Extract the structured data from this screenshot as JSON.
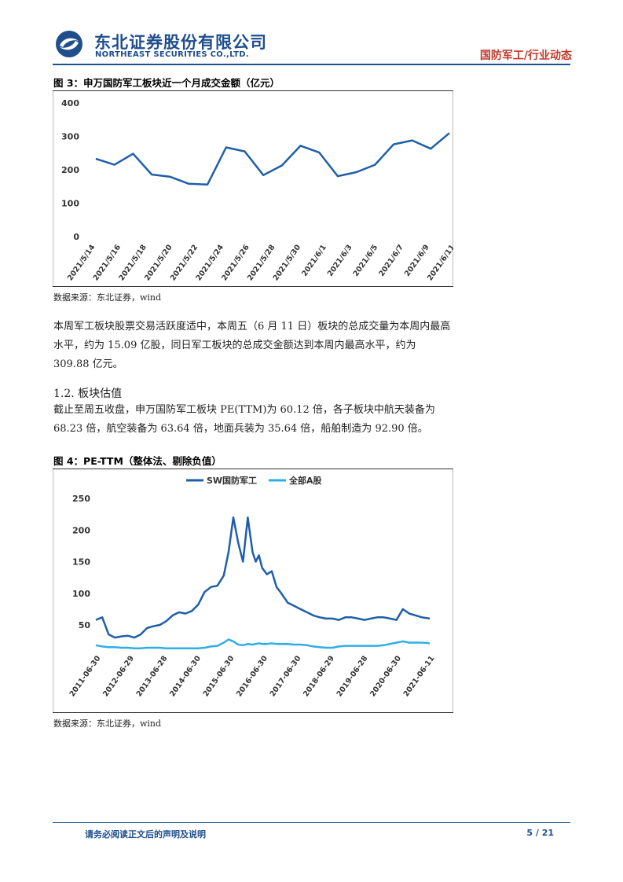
{
  "header": {
    "company_cn": "东北证券股份有限公司",
    "company_en": "NORTHEAST SECURITIES CO.,LTD.",
    "section": "国防军工/行业动态"
  },
  "figure3": {
    "title": "图 3：申万国防军工板块近一个月成交金额（亿元）",
    "source": "数据来源：东北证券，wind",
    "chart_data": {
      "type": "line",
      "title": "",
      "x_tick_labels": [
        "2021/5/14",
        "2021/5/16",
        "2021/5/18",
        "2021/5/20",
        "2021/5/22",
        "2021/5/24",
        "2021/5/26",
        "2021/5/28",
        "2021/5/30",
        "2021/6/1",
        "2021/6/3",
        "2021/6/5",
        "2021/6/7",
        "2021/6/9",
        "2021/6/11"
      ],
      "x": [
        "2021/5/14",
        "2021/5/17",
        "2021/5/18",
        "2021/5/19",
        "2021/5/20",
        "2021/5/21",
        "2021/5/24",
        "2021/5/25",
        "2021/5/26",
        "2021/5/27",
        "2021/5/28",
        "2021/5/31",
        "2021/6/1",
        "2021/6/2",
        "2021/6/3",
        "2021/6/4",
        "2021/6/7",
        "2021/6/8",
        "2021/6/9",
        "2021/6/10",
        "2021/6/11"
      ],
      "series": [
        {
          "name": "",
          "color": "#1f5fa8",
          "values": [
            233,
            215,
            248,
            186,
            179,
            158,
            156,
            267,
            255,
            184,
            213,
            272,
            252,
            181,
            193,
            215,
            276,
            288,
            263,
            310,
            null
          ]
        }
      ],
      "y_ticks": [
        0,
        100,
        200,
        300,
        400
      ],
      "ylim": [
        0,
        400
      ],
      "xlabel": "",
      "ylabel": "",
      "grid": false
    }
  },
  "paragraph1": "本周军工板块股票交易活跃度适中，本周五（6 月 11 日）板块的总成交量为本周内最高水平，约为 15.09 亿股，同日军工板块的总成交金额达到本周内最高水平，约为 309.88 亿元。",
  "section_heading": "1.2.  板块估值",
  "paragraph2": "截止至周五收盘，申万国防军工板块 PE(TTM)为 60.12 倍，各子板块中航天装备为 68.23 倍，航空装备为 63.64 倍，地面兵装为 35.64 倍，船舶制造为 92.90 倍。",
  "figure4": {
    "title": "图 4：PE-TTM（整体法、剔除负值）",
    "source": "数据来源：东北证券，wind",
    "chart_data": {
      "type": "line",
      "title": "",
      "x_tick_labels": [
        "2011-06-30",
        "2012-06-29",
        "2013-06-28",
        "2014-06-30",
        "2015-06-30",
        "2016-06-30",
        "2017-06-30",
        "2018-06-29",
        "2019-06-28",
        "2020-06-30",
        "2021-06-11"
      ],
      "x": [
        2011.0,
        2011.2,
        2011.4,
        2011.6,
        2011.8,
        2012.0,
        2012.2,
        2012.4,
        2012.6,
        2012.8,
        2013.0,
        2013.2,
        2013.4,
        2013.6,
        2013.8,
        2014.0,
        2014.2,
        2014.4,
        2014.6,
        2014.8,
        2015.0,
        2015.15,
        2015.3,
        2015.45,
        2015.6,
        2015.75,
        2015.9,
        2016.0,
        2016.1,
        2016.2,
        2016.35,
        2016.5,
        2016.65,
        2016.8,
        2017.0,
        2017.2,
        2017.4,
        2017.6,
        2017.8,
        2018.0,
        2018.2,
        2018.4,
        2018.6,
        2018.8,
        2019.0,
        2019.2,
        2019.4,
        2019.6,
        2019.8,
        2020.0,
        2020.2,
        2020.4,
        2020.6,
        2020.8,
        2021.0,
        2021.2,
        2021.44
      ],
      "series": [
        {
          "name": "SW国防军工",
          "color": "#1f5fa8",
          "values": [
            58,
            62,
            35,
            30,
            32,
            33,
            30,
            35,
            45,
            48,
            50,
            56,
            65,
            70,
            68,
            72,
            82,
            102,
            110,
            112,
            128,
            165,
            220,
            180,
            150,
            220,
            165,
            150,
            160,
            140,
            130,
            135,
            110,
            100,
            85,
            80,
            75,
            70,
            65,
            62,
            60,
            60,
            58,
            62,
            62,
            60,
            58,
            60,
            62,
            62,
            60,
            58,
            75,
            68,
            65,
            62,
            60
          ]
        },
        {
          "name": "全部A股",
          "color": "#2eaee6",
          "values": [
            18,
            16,
            15,
            15,
            14,
            14,
            13,
            13,
            14,
            14,
            14,
            13,
            13,
            13,
            13,
            13,
            13,
            14,
            16,
            17,
            22,
            27,
            24,
            19,
            18,
            20,
            19,
            20,
            21,
            20,
            20,
            21,
            20,
            20,
            20,
            19,
            19,
            18,
            16,
            15,
            14,
            14,
            16,
            17,
            17,
            17,
            17,
            17,
            17,
            18,
            20,
            22,
            24,
            22,
            22,
            22,
            21
          ]
        }
      ],
      "y_ticks": [
        50,
        100,
        150,
        200,
        250
      ],
      "ylim": [
        10,
        250
      ],
      "legend": "top-center",
      "xlabel": "",
      "ylabel": "",
      "grid": false
    }
  },
  "footer": {
    "note": "请务必阅读正文后的声明及说明",
    "page": "5 / 21"
  }
}
